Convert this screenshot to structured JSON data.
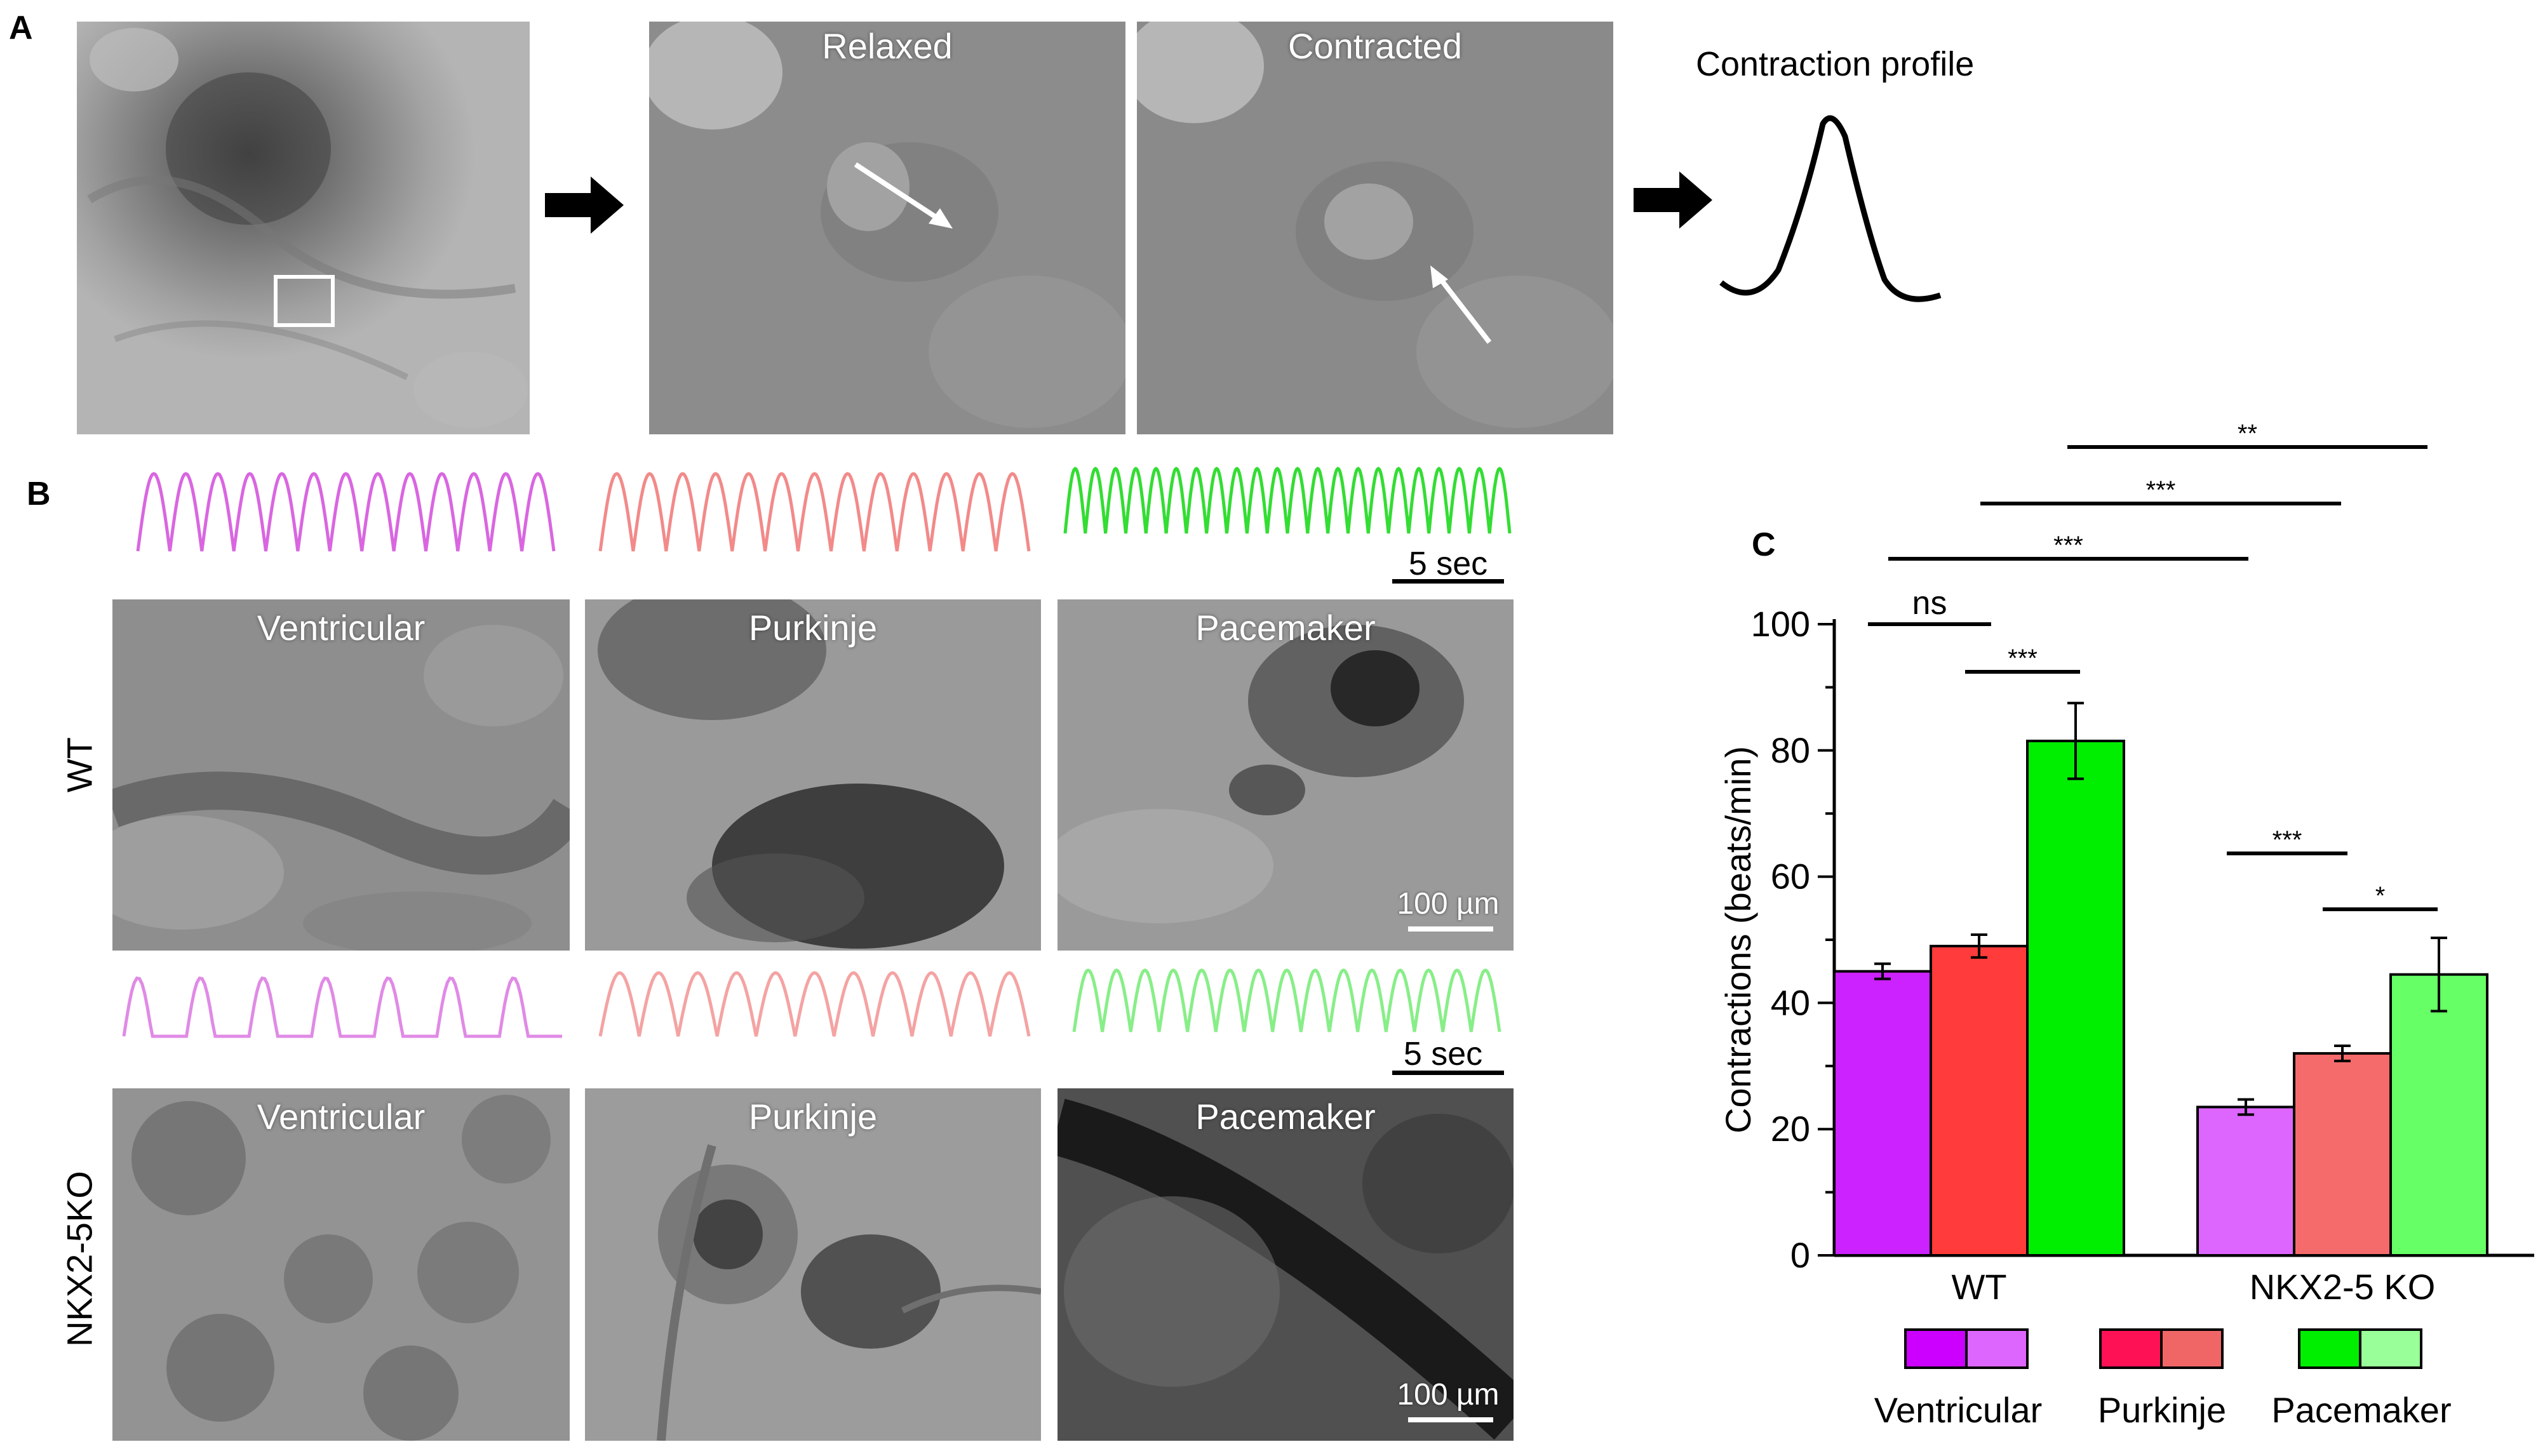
{
  "panel_a": {
    "letter": "A",
    "relaxed_label": "Relaxed",
    "contracted_label": "Contracted",
    "profile_title": "Contraction profile"
  },
  "panel_b": {
    "letter": "B",
    "wt_label": "WT",
    "ko_label": "NKX2-5KO",
    "scale_time": "5 sec",
    "scale_length": "100 µm",
    "cell_types": [
      "Ventricular",
      "Purkinje",
      "Pacemaker"
    ],
    "wt_traces": [
      {
        "name": "ventricular",
        "color": "#d966e0",
        "beats": 13
      },
      {
        "name": "purkinje",
        "color": "#f28a8a",
        "beats": 13
      },
      {
        "name": "pacemaker",
        "color": "#33dd33",
        "beats": 22
      }
    ],
    "ko_traces": [
      {
        "name": "ventricular",
        "color": "#e08ae6",
        "beats": 7
      },
      {
        "name": "purkinje",
        "color": "#f4a3a3",
        "beats": 11
      },
      {
        "name": "pacemaker",
        "color": "#88ee88",
        "beats": 15
      }
    ]
  },
  "panel_c": {
    "letter": "C"
  },
  "chart_data": {
    "type": "bar",
    "ylabel": "Contractions (beats/min)",
    "ylim": [
      0,
      100
    ],
    "yticks": [
      0,
      20,
      40,
      60,
      80,
      100
    ],
    "groups": [
      "WT",
      "NKX2-5 KO"
    ],
    "legend": [
      "Ventricular",
      "Purkinje",
      "Pacemaker"
    ],
    "legend_colors": [
      [
        "#cc00ff",
        "#dd66ff"
      ],
      [
        "#ff1155",
        "#f06666"
      ],
      [
        "#00ee00",
        "#99ff99"
      ]
    ],
    "bars": [
      {
        "group": "WT",
        "cell": "Ventricular",
        "value": 45,
        "error": 1.2,
        "color": "#cc22ff"
      },
      {
        "group": "WT",
        "cell": "Purkinje",
        "value": 49,
        "error": 1.8,
        "color": "#ff3b3b"
      },
      {
        "group": "WT",
        "cell": "Pacemaker",
        "value": 81.5,
        "error": 6,
        "color": "#00ee00"
      },
      {
        "group": "NKX2-5 KO",
        "cell": "Ventricular",
        "value": 23.5,
        "error": 1.2,
        "color": "#dd66ff"
      },
      {
        "group": "NKX2-5 KO",
        "cell": "Purkinje",
        "value": 32,
        "error": 1.2,
        "color": "#f56b6b"
      },
      {
        "group": "NKX2-5 KO",
        "cell": "Pacemaker",
        "value": 44.5,
        "error": 5.8,
        "color": "#66ff66"
      }
    ],
    "significance": [
      {
        "from": 0,
        "to": 1,
        "label": "ns"
      },
      {
        "from": 1,
        "to": 2,
        "label": "***"
      },
      {
        "from": 0,
        "to": 4,
        "label": "***"
      },
      {
        "from": 1,
        "to": 5,
        "label": "***"
      },
      {
        "from": 2,
        "to": 5,
        "label": "**"
      },
      {
        "from": 3,
        "to": 4,
        "label": "***"
      },
      {
        "from": 4,
        "to": 5,
        "label": "*"
      }
    ]
  }
}
